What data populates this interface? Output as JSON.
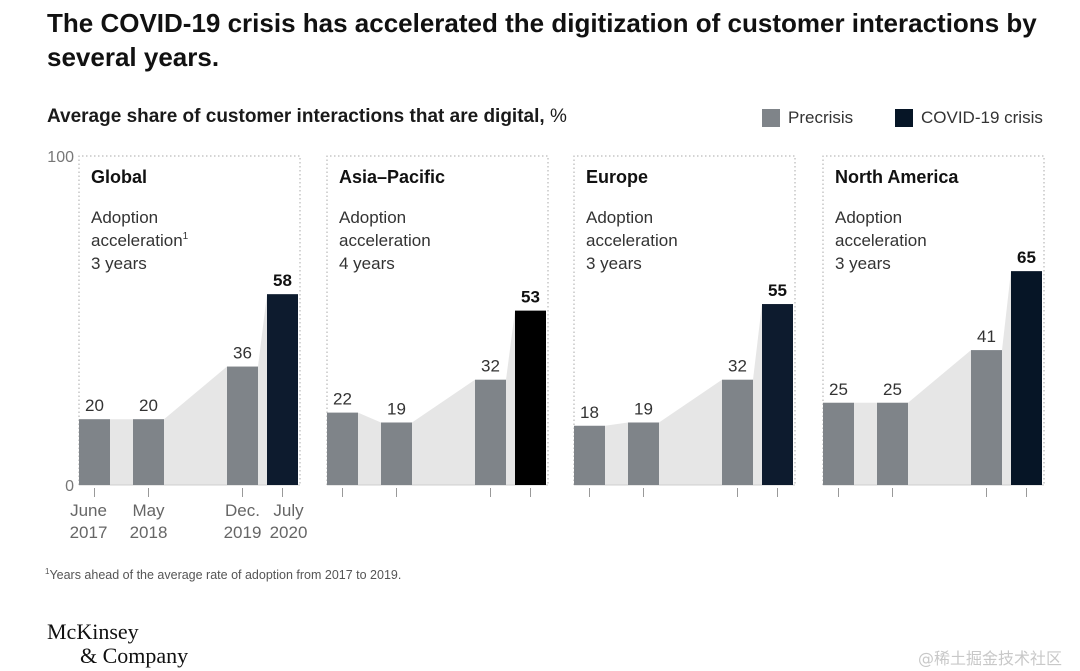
{
  "title": "The COVID-19 crisis has accelerated the digitization of customer interactions by several years.",
  "subtitle": "Average share of customer interactions that are digital,",
  "subtitle_unit": "%",
  "legend": {
    "precrisis": {
      "label": "Precrisis",
      "color": "#7f8489"
    },
    "covid": {
      "label": "COVID-19 crisis",
      "color": "#061526"
    }
  },
  "footnote": {
    "marker": "1",
    "text": "Years ahead of the average rate of adoption from 2017 to 2019."
  },
  "logo": {
    "line1": "McKinsey",
    "line2": "& Company"
  },
  "watermark": "@稀土掘金技术社区",
  "chart_data": {
    "type": "bar",
    "ylim": [
      0,
      100
    ],
    "yticks": [
      "100",
      "0"
    ],
    "x_labels": [
      {
        "line1": "June",
        "line2": "2017"
      },
      {
        "line1": "May",
        "line2": "2018"
      },
      {
        "line1": "Dec.",
        "line2": "2019"
      },
      {
        "line1": "July",
        "line2": "2020"
      }
    ],
    "panels": [
      {
        "name": "Global",
        "note_line1": "Adoption",
        "note_line2": "acceleration",
        "note_sup": "1",
        "note_line3": "3 years",
        "values": [
          20,
          20,
          36,
          58
        ],
        "covid_color": "#0d1b2e"
      },
      {
        "name": "Asia–Pacific",
        "note_line1": "Adoption",
        "note_line2": "acceleration",
        "note_sup": "",
        "note_line3": "4 years",
        "values": [
          22,
          19,
          32,
          53
        ],
        "covid_color": "#000000"
      },
      {
        "name": "Europe",
        "note_line1": "Adoption",
        "note_line2": "acceleration",
        "note_sup": "",
        "note_line3": "3 years",
        "values": [
          18,
          19,
          32,
          55
        ],
        "covid_color": "#0d1b2e"
      },
      {
        "name": "North America",
        "note_line1": "Adoption",
        "note_line2": "acceleration",
        "note_sup": "",
        "note_line3": "3 years",
        "values": [
          25,
          25,
          41,
          65
        ],
        "covid_color": "#061526"
      }
    ]
  }
}
